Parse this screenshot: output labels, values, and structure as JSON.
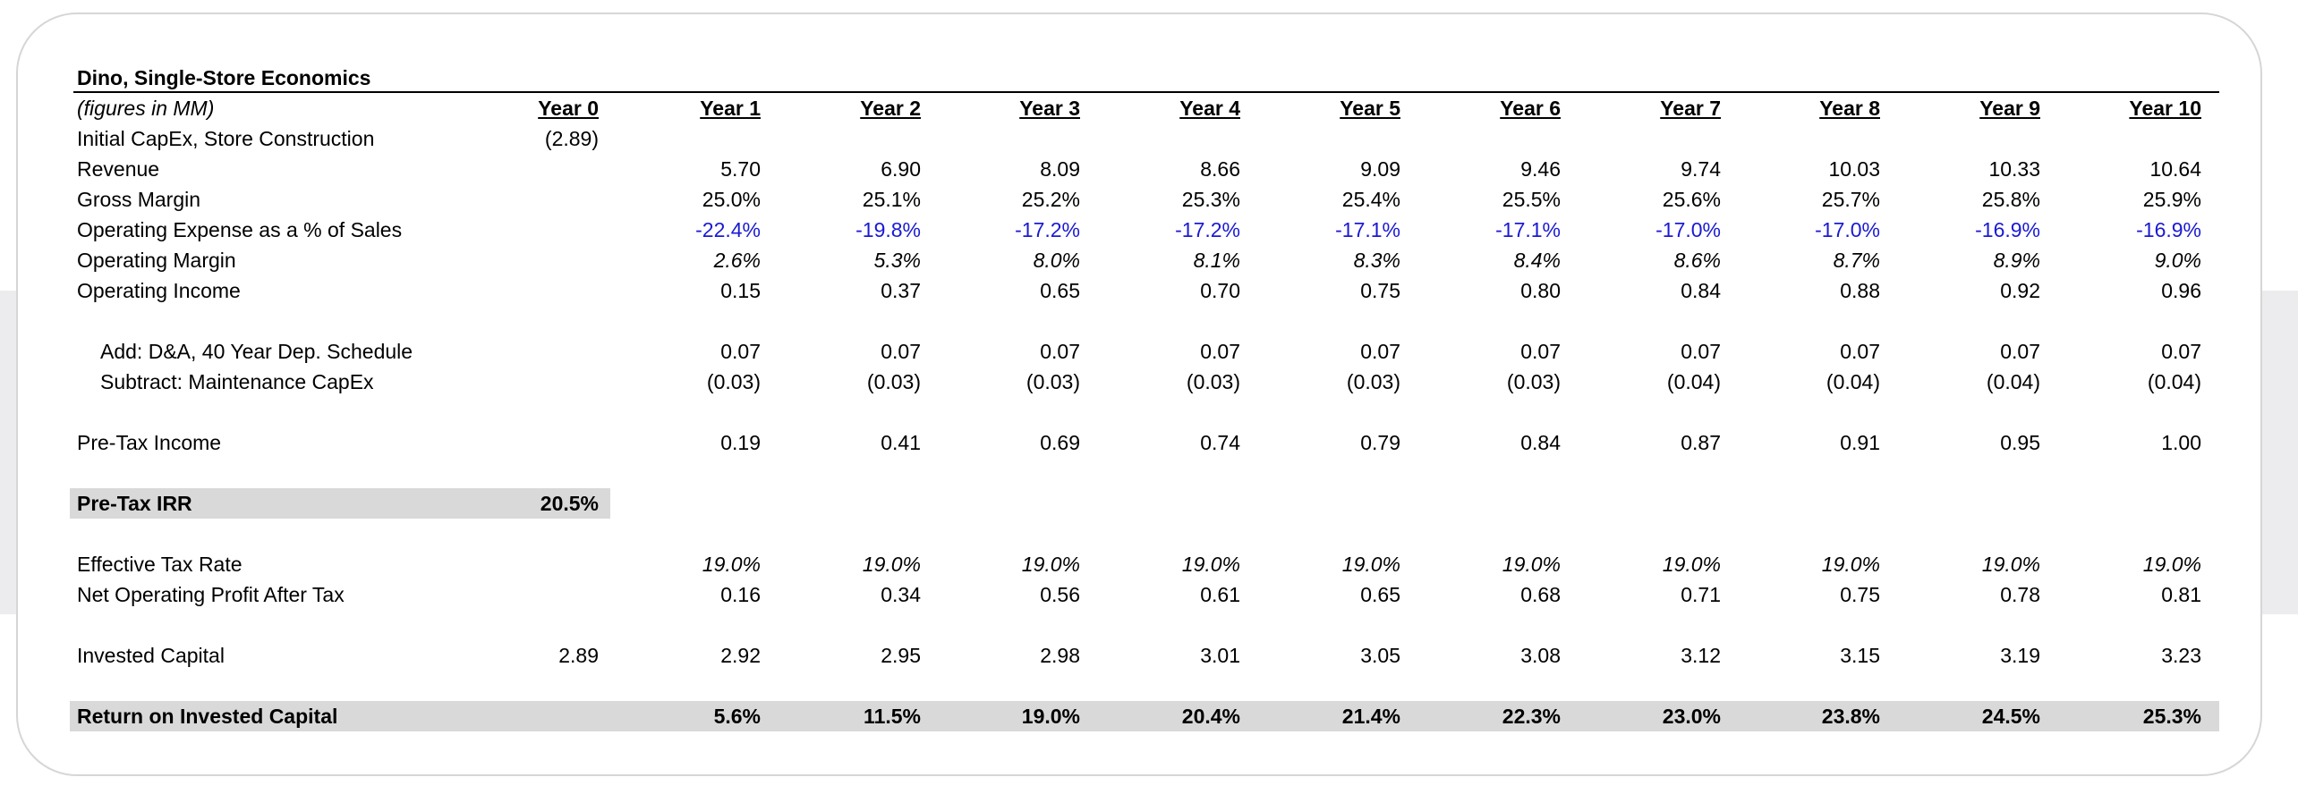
{
  "title": "Dino, Single-Store Economics",
  "header": {
    "label": "(figures in MM)",
    "years": [
      "Year 0",
      "Year 1",
      "Year 2",
      "Year 3",
      "Year 4",
      "Year 5",
      "Year 6",
      "Year 7",
      "Year 8",
      "Year 9",
      "Year 10"
    ]
  },
  "rows": {
    "capex": {
      "label": "Initial CapEx, Store Construction",
      "values": [
        "(2.89)",
        "",
        "",
        "",
        "",
        "",
        "",
        "",
        "",
        "",
        ""
      ]
    },
    "revenue": {
      "label": "Revenue",
      "values": [
        "",
        "5.70",
        "6.90",
        "8.09",
        "8.66",
        "9.09",
        "9.46",
        "9.74",
        "10.03",
        "10.33",
        "10.64"
      ]
    },
    "gross_margin": {
      "label": "Gross Margin",
      "values": [
        "",
        "25.0%",
        "25.1%",
        "25.2%",
        "25.3%",
        "25.4%",
        "25.5%",
        "25.6%",
        "25.7%",
        "25.8%",
        "25.9%"
      ]
    },
    "opex_pct": {
      "label": "Operating Expense as a % of Sales",
      "values": [
        "",
        "-22.4%",
        "-19.8%",
        "-17.2%",
        "-17.2%",
        "-17.1%",
        "-17.1%",
        "-17.0%",
        "-17.0%",
        "-16.9%",
        "-16.9%"
      ]
    },
    "op_margin": {
      "label": "Operating Margin",
      "values": [
        "",
        "2.6%",
        "5.3%",
        "8.0%",
        "8.1%",
        "8.3%",
        "8.4%",
        "8.6%",
        "8.7%",
        "8.9%",
        "9.0%"
      ]
    },
    "op_income": {
      "label": "Operating Income",
      "values": [
        "",
        "0.15",
        "0.37",
        "0.65",
        "0.70",
        "0.75",
        "0.80",
        "0.84",
        "0.88",
        "0.92",
        "0.96"
      ]
    },
    "da": {
      "label": "Add: D&A, 40 Year Dep. Schedule",
      "values": [
        "",
        "0.07",
        "0.07",
        "0.07",
        "0.07",
        "0.07",
        "0.07",
        "0.07",
        "0.07",
        "0.07",
        "0.07"
      ]
    },
    "maint_capex": {
      "label": "Subtract: Maintenance CapEx",
      "values": [
        "",
        "(0.03)",
        "(0.03)",
        "(0.03)",
        "(0.03)",
        "(0.03)",
        "(0.03)",
        "(0.04)",
        "(0.04)",
        "(0.04)",
        "(0.04)"
      ]
    },
    "pretax_income": {
      "label": "Pre-Tax Income",
      "values": [
        "",
        "0.19",
        "0.41",
        "0.69",
        "0.74",
        "0.79",
        "0.84",
        "0.87",
        "0.91",
        "0.95",
        "1.00"
      ]
    },
    "irr": {
      "label": "Pre-Tax IRR",
      "values": [
        "20.5%",
        "",
        "",
        "",
        "",
        "",
        "",
        "",
        "",
        "",
        ""
      ]
    },
    "tax_rate": {
      "label": "Effective Tax Rate",
      "values": [
        "",
        "19.0%",
        "19.0%",
        "19.0%",
        "19.0%",
        "19.0%",
        "19.0%",
        "19.0%",
        "19.0%",
        "19.0%",
        "19.0%"
      ]
    },
    "nopat": {
      "label": "Net Operating Profit After Tax",
      "values": [
        "",
        "0.16",
        "0.34",
        "0.56",
        "0.61",
        "0.65",
        "0.68",
        "0.71",
        "0.75",
        "0.78",
        "0.81"
      ]
    },
    "invested_capital": {
      "label": "Invested Capital",
      "values": [
        "2.89",
        "2.92",
        "2.95",
        "2.98",
        "3.01",
        "3.05",
        "3.08",
        "3.12",
        "3.15",
        "3.19",
        "3.23"
      ]
    },
    "roic": {
      "label": "Return on Invested Capital",
      "values": [
        "",
        "5.6%",
        "11.5%",
        "19.0%",
        "20.4%",
        "21.4%",
        "22.3%",
        "23.0%",
        "23.8%",
        "24.5%",
        "25.3%"
      ]
    }
  },
  "colors": {
    "negative_input": "#1a1ad4",
    "highlight_band": "#d9d9d9"
  }
}
